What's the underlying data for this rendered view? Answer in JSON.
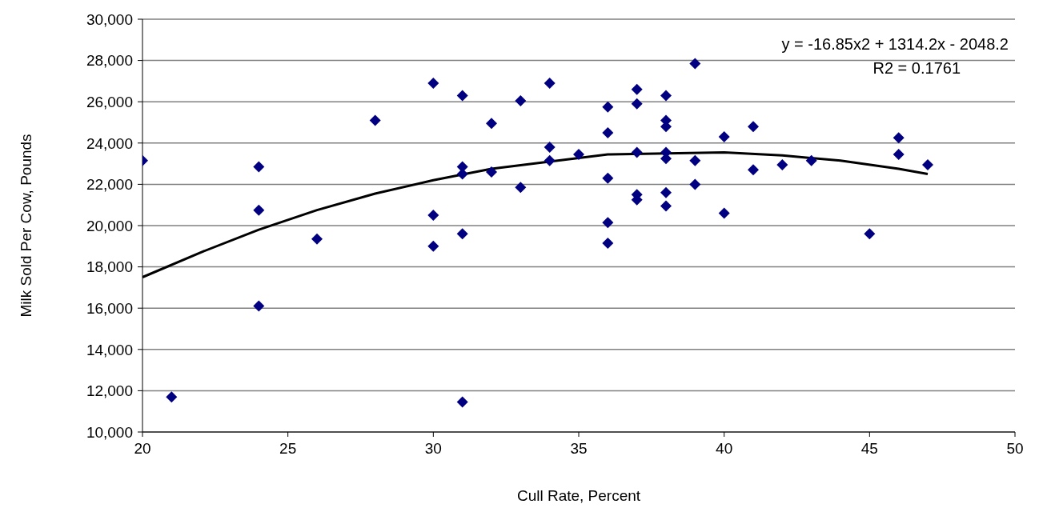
{
  "chart_data": {
    "type": "scatter",
    "xlabel": "Cull Rate, Percent",
    "ylabel": "Milk Sold Per Cow, Pounds",
    "annotations": [
      "y = -16.85x2 + 1314.2x - 2048.2",
      "R2 = 0.1761"
    ],
    "xlim": [
      20,
      50
    ],
    "xticks": [
      20,
      25,
      30,
      35,
      40,
      45,
      50
    ],
    "ylim": [
      10000,
      30000
    ],
    "yticks": [
      {
        "value": 10000,
        "label": "10,000"
      },
      {
        "value": 12000,
        "label": "12,000"
      },
      {
        "value": 14000,
        "label": "14,000"
      },
      {
        "value": 16000,
        "label": "16,000"
      },
      {
        "value": 18000,
        "label": "18,000"
      },
      {
        "value": 20000,
        "label": "20,000"
      },
      {
        "value": 22000,
        "label": "22,000"
      },
      {
        "value": 24000,
        "label": "24,000"
      },
      {
        "value": 26000,
        "label": "26,000"
      },
      {
        "value": 28000,
        "label": "28,000"
      },
      {
        "value": 30000,
        "label": "30,000"
      }
    ],
    "grid": "y",
    "series": [
      {
        "color": "#000080",
        "marker": "diamond",
        "x": [
          20,
          21,
          24,
          24,
          24,
          26,
          28,
          30,
          30,
          30,
          31,
          31,
          31,
          31,
          31,
          32,
          32,
          33,
          33,
          34,
          34,
          34,
          35,
          36,
          36,
          36,
          36,
          36,
          37,
          37,
          37,
          37,
          37,
          38,
          38,
          38,
          38,
          38,
          38,
          38,
          39,
          39,
          39,
          40,
          40,
          41,
          41,
          42,
          43,
          45,
          46,
          46,
          47
        ],
        "values": [
          23150,
          11700,
          22850,
          20750,
          16100,
          19350,
          25100,
          26900,
          20500,
          19000,
          26300,
          22850,
          22500,
          19600,
          11450,
          24950,
          22600,
          26050,
          21850,
          26900,
          23800,
          23150,
          23450,
          25750,
          24500,
          22300,
          20150,
          19150,
          26600,
          25900,
          23550,
          21500,
          21250,
          26300,
          25100,
          24800,
          23550,
          23250,
          21600,
          20950,
          27850,
          23150,
          22000,
          24300,
          20600,
          24800,
          22700,
          22950,
          23150,
          19600,
          24250,
          23450,
          22950
        ]
      },
      {
        "type": "line",
        "color": "#000000",
        "marker": "none",
        "line_style": "solid",
        "x": [
          20,
          22,
          24,
          26,
          28,
          30,
          32,
          36,
          40,
          42,
          44,
          46,
          47
        ],
        "values": [
          17500,
          18700,
          19800,
          20750,
          21550,
          22200,
          22750,
          23450,
          23550,
          23400,
          23150,
          22750,
          22500
        ]
      }
    ]
  }
}
